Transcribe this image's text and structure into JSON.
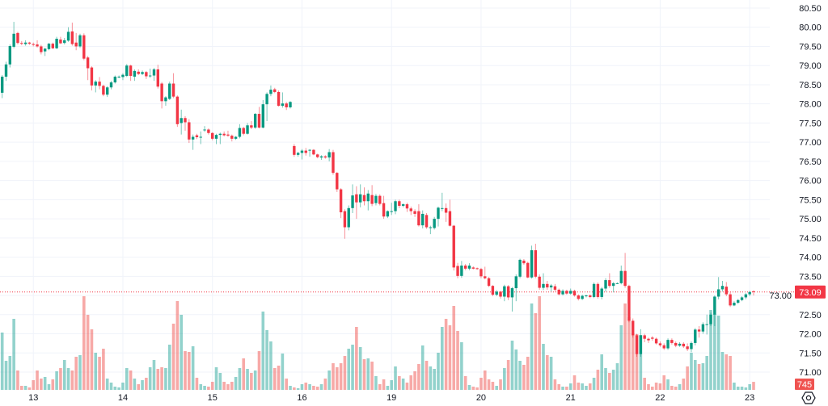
{
  "colors": {
    "up": "#089981",
    "down": "#f23645",
    "up_volume": "#26a69a",
    "down_volume": "#ef5350",
    "grid": "#f0f3fa",
    "text": "#131722"
  },
  "icons": {
    "settings": "settings-icon"
  },
  "last_price_label": "73.09",
  "last_volume_label": "745",
  "chart_data": {
    "type": "candlestick",
    "title": "",
    "price_axis": {
      "min": 71.0,
      "max": 80.5,
      "ticks": [
        "80.50",
        "80.00",
        "79.50",
        "79.00",
        "78.50",
        "78.00",
        "77.50",
        "77.00",
        "76.50",
        "76.00",
        "75.50",
        "75.00",
        "74.50",
        "74.00",
        "73.50",
        "73.00",
        "72.50",
        "72.00",
        "71.50",
        "71.00"
      ]
    },
    "time_axis": {
      "ticks": [
        {
          "label": "13",
          "index": 8
        },
        {
          "label": "14",
          "index": 31
        },
        {
          "label": "15",
          "index": 54
        },
        {
          "label": "16",
          "index": 77
        },
        {
          "label": "19",
          "index": 100
        },
        {
          "label": "20",
          "index": 123
        },
        {
          "label": "21",
          "index": 146
        },
        {
          "label": "22",
          "index": 169
        },
        {
          "label": "23",
          "index": 192
        }
      ]
    },
    "last_price": 73.09,
    "last_volume": 745,
    "fields": [
      "open",
      "high",
      "low",
      "close",
      "volume"
    ],
    "candles": [
      [
        78.29,
        78.75,
        78.15,
        78.71,
        5325
      ],
      [
        78.71,
        79.1,
        78.6,
        79.03,
        2700
      ],
      [
        79.03,
        79.55,
        78.95,
        79.51,
        3150
      ],
      [
        79.49,
        80.14,
        79.45,
        79.83,
        6600
      ],
      [
        79.85,
        79.88,
        79.55,
        79.59,
        1800
      ],
      [
        79.59,
        79.64,
        79.53,
        79.58,
        375
      ],
      [
        79.56,
        79.66,
        79.52,
        79.6,
        375
      ],
      [
        79.6,
        79.62,
        79.54,
        79.57,
        225
      ],
      [
        79.56,
        79.6,
        79.5,
        79.55,
        900
      ],
      [
        79.55,
        79.66,
        79.47,
        79.5,
        1800
      ],
      [
        79.5,
        79.54,
        79.29,
        79.35,
        1050
      ],
      [
        79.37,
        79.46,
        79.25,
        79.44,
        1200
      ],
      [
        79.43,
        79.59,
        79.4,
        79.57,
        525
      ],
      [
        79.57,
        79.6,
        79.43,
        79.45,
        975
      ],
      [
        79.45,
        79.75,
        79.43,
        79.7,
        1725
      ],
      [
        79.68,
        79.75,
        79.56,
        79.58,
        2025
      ],
      [
        79.59,
        79.72,
        79.55,
        79.66,
        2775
      ],
      [
        79.65,
        80.0,
        79.62,
        79.88,
        2025
      ],
      [
        79.89,
        80.12,
        79.52,
        79.56,
        1800
      ],
      [
        79.6,
        79.85,
        79.4,
        79.5,
        3075
      ],
      [
        79.5,
        79.83,
        79.46,
        79.79,
        3225
      ],
      [
        79.79,
        79.84,
        79.14,
        79.18,
        8700
      ],
      [
        79.21,
        79.25,
        78.62,
        78.93,
        6975
      ],
      [
        78.95,
        78.98,
        78.35,
        78.48,
        5625
      ],
      [
        78.48,
        78.62,
        78.3,
        78.58,
        3450
      ],
      [
        78.58,
        78.7,
        78.38,
        78.47,
        3075
      ],
      [
        78.47,
        78.5,
        78.2,
        78.24,
        3825
      ],
      [
        78.24,
        78.46,
        78.18,
        78.43,
        1050
      ],
      [
        78.43,
        78.6,
        78.38,
        78.56,
        675
      ],
      [
        78.56,
        78.74,
        78.53,
        78.71,
        300
      ],
      [
        78.71,
        78.74,
        78.67,
        78.71,
        225
      ],
      [
        78.7,
        78.8,
        78.62,
        78.76,
        675
      ],
      [
        78.73,
        79.04,
        78.7,
        79.0,
        2025
      ],
      [
        79.0,
        79.02,
        78.6,
        78.73,
        1800
      ],
      [
        78.71,
        78.9,
        78.6,
        78.86,
        1050
      ],
      [
        78.84,
        78.9,
        78.75,
        78.78,
        525
      ],
      [
        78.78,
        78.87,
        78.75,
        78.83,
        900
      ],
      [
        78.83,
        78.86,
        78.65,
        78.72,
        1125
      ],
      [
        78.74,
        78.92,
        78.68,
        78.74,
        2100
      ],
      [
        78.74,
        78.94,
        78.6,
        78.9,
        2775
      ],
      [
        78.9,
        79.02,
        78.4,
        78.45,
        1950
      ],
      [
        78.53,
        78.57,
        77.88,
        78.07,
        2100
      ],
      [
        78.07,
        78.2,
        77.95,
        78.17,
        2025
      ],
      [
        78.13,
        78.58,
        78.1,
        78.53,
        4200
      ],
      [
        78.53,
        78.8,
        78.15,
        78.19,
        6150
      ],
      [
        78.19,
        78.22,
        77.4,
        77.47,
        8250
      ],
      [
        77.5,
        77.85,
        77.2,
        77.63,
        6975
      ],
      [
        77.63,
        77.68,
        77.3,
        77.52,
        3600
      ],
      [
        77.52,
        77.6,
        76.98,
        77.07,
        3525
      ],
      [
        77.07,
        77.2,
        76.8,
        77.14,
        4050
      ],
      [
        77.18,
        77.22,
        77.08,
        77.13,
        1125
      ],
      [
        77.12,
        77.28,
        76.95,
        77.14,
        525
      ],
      [
        77.32,
        77.42,
        77.27,
        77.33,
        375
      ],
      [
        77.33,
        77.36,
        77.2,
        77.24,
        300
      ],
      [
        77.24,
        77.26,
        77.05,
        77.09,
        750
      ],
      [
        77.09,
        77.22,
        76.95,
        77.19,
        2100
      ],
      [
        77.19,
        77.25,
        76.95,
        77.22,
        1575
      ],
      [
        77.22,
        77.28,
        77.15,
        77.18,
        750
      ],
      [
        77.2,
        77.3,
        77.14,
        77.17,
        525
      ],
      [
        77.17,
        77.2,
        77.02,
        77.09,
        750
      ],
      [
        77.09,
        77.16,
        77.06,
        77.14,
        1200
      ],
      [
        77.14,
        77.47,
        77.1,
        77.37,
        2025
      ],
      [
        77.37,
        77.4,
        77.18,
        77.22,
        2925
      ],
      [
        77.22,
        77.5,
        77.2,
        77.44,
        1950
      ],
      [
        77.44,
        77.55,
        77.34,
        77.38,
        1575
      ],
      [
        77.38,
        77.76,
        77.35,
        77.74,
        1800
      ],
      [
        77.74,
        77.92,
        77.36,
        77.38,
        3600
      ],
      [
        77.38,
        78.1,
        77.36,
        77.99,
        7275
      ],
      [
        77.99,
        78.3,
        77.55,
        78.26,
        5550
      ],
      [
        78.26,
        78.48,
        78.2,
        78.37,
        4500
      ],
      [
        78.38,
        78.42,
        78.28,
        78.31,
        2025
      ],
      [
        78.31,
        78.35,
        77.93,
        77.95,
        2250
      ],
      [
        77.95,
        78.3,
        77.9,
        78.01,
        3375
      ],
      [
        78.01,
        78.05,
        77.84,
        77.91,
        1050
      ],
      [
        77.91,
        78.07,
        77.88,
        78.05,
        375
      ],
      [
        76.9,
        76.95,
        76.62,
        76.67,
        225
      ],
      [
        76.67,
        76.75,
        76.62,
        76.72,
        150
      ],
      [
        76.72,
        76.82,
        76.55,
        76.78,
        525
      ],
      [
        76.78,
        76.85,
        76.65,
        76.72,
        675
      ],
      [
        76.78,
        76.82,
        76.62,
        76.8,
        525
      ],
      [
        76.8,
        76.82,
        76.66,
        76.68,
        375
      ],
      [
        76.68,
        76.7,
        76.58,
        76.61,
        300
      ],
      [
        76.6,
        76.66,
        76.54,
        76.63,
        525
      ],
      [
        76.63,
        76.66,
        76.57,
        76.6,
        1050
      ],
      [
        76.6,
        76.82,
        76.5,
        76.74,
        1800
      ],
      [
        76.74,
        76.8,
        76.15,
        76.2,
        2475
      ],
      [
        76.2,
        76.22,
        75.7,
        75.77,
        2100
      ],
      [
        75.77,
        75.8,
        75.02,
        75.17,
        2475
      ],
      [
        75.2,
        75.25,
        74.48,
        74.78,
        3150
      ],
      [
        74.78,
        75.35,
        74.7,
        75.28,
        3825
      ],
      [
        75.28,
        75.9,
        75.15,
        75.61,
        4200
      ],
      [
        75.64,
        75.85,
        75.0,
        75.43,
        5850
      ],
      [
        75.43,
        75.9,
        75.3,
        75.64,
        3975
      ],
      [
        75.62,
        75.82,
        75.35,
        75.46,
        2850
      ],
      [
        75.46,
        75.75,
        75.22,
        75.66,
        2925
      ],
      [
        75.62,
        75.88,
        75.33,
        75.39,
        2625
      ],
      [
        75.41,
        75.65,
        75.35,
        75.6,
        1275
      ],
      [
        75.6,
        75.64,
        75.35,
        75.39,
        525
      ],
      [
        75.41,
        75.6,
        75.0,
        75.06,
        975
      ],
      [
        75.06,
        75.22,
        75.02,
        75.2,
        375
      ],
      [
        75.2,
        75.42,
        75.1,
        75.2,
        900
      ],
      [
        75.2,
        75.5,
        75.12,
        75.46,
        2175
      ],
      [
        75.46,
        75.5,
        75.28,
        75.34,
        1275
      ],
      [
        75.34,
        75.4,
        75.3,
        75.38,
        1050
      ],
      [
        75.38,
        75.42,
        75.18,
        75.27,
        675
      ],
      [
        75.27,
        75.32,
        75.1,
        75.2,
        1350
      ],
      [
        75.2,
        75.25,
        75.05,
        75.13,
        1725
      ],
      [
        75.2,
        75.38,
        74.8,
        74.83,
        2400
      ],
      [
        74.83,
        75.22,
        74.75,
        75.13,
        4125
      ],
      [
        75.1,
        75.15,
        74.74,
        74.78,
        2700
      ],
      [
        74.78,
        74.82,
        74.6,
        74.78,
        2175
      ],
      [
        74.76,
        75.05,
        74.72,
        75.0,
        1950
      ],
      [
        75.0,
        75.32,
        74.8,
        75.29,
        3450
      ],
      [
        75.28,
        75.68,
        75.2,
        75.28,
        5850
      ],
      [
        75.28,
        75.4,
        74.92,
        75.16,
        6600
      ],
      [
        75.2,
        75.5,
        74.8,
        74.82,
        6000
      ],
      [
        74.82,
        74.84,
        73.65,
        73.73,
        7800
      ],
      [
        73.77,
        73.85,
        73.45,
        73.51,
        5475
      ],
      [
        73.51,
        73.9,
        73.46,
        73.78,
        4425
      ],
      [
        73.78,
        73.82,
        73.66,
        73.7,
        1275
      ],
      [
        73.7,
        73.84,
        73.66,
        73.78,
        450
      ],
      [
        73.73,
        73.76,
        73.68,
        73.7,
        300
      ],
      [
        73.71,
        73.73,
        73.67,
        73.69,
        225
      ],
      [
        73.69,
        73.72,
        73.45,
        73.5,
        1125
      ],
      [
        73.5,
        73.75,
        73.42,
        73.45,
        1800
      ],
      [
        73.45,
        73.48,
        73.22,
        73.25,
        975
      ],
      [
        73.25,
        73.27,
        72.98,
        73.02,
        750
      ],
      [
        73.02,
        73.14,
        72.98,
        73.1,
        375
      ],
      [
        73.1,
        73.12,
        72.92,
        72.97,
        975
      ],
      [
        72.97,
        73.28,
        72.85,
        73.24,
        2025
      ],
      [
        73.24,
        73.27,
        72.88,
        72.95,
        2775
      ],
      [
        72.95,
        73.22,
        72.58,
        73.19,
        4575
      ],
      [
        73.19,
        73.55,
        72.85,
        73.5,
        3750
      ],
      [
        73.49,
        73.96,
        73.45,
        73.93,
        2700
      ],
      [
        73.91,
        73.95,
        73.8,
        73.84,
        2325
      ],
      [
        73.85,
        73.88,
        73.45,
        73.47,
        3075
      ],
      [
        73.47,
        74.3,
        73.44,
        74.18,
        8025
      ],
      [
        74.18,
        74.35,
        73.45,
        73.49,
        7125
      ],
      [
        73.49,
        73.55,
        73.15,
        73.2,
        8700
      ],
      [
        73.2,
        73.58,
        73.14,
        73.3,
        4275
      ],
      [
        73.3,
        73.38,
        73.15,
        73.21,
        3225
      ],
      [
        73.21,
        73.3,
        73.1,
        73.26,
        3075
      ],
      [
        73.24,
        73.3,
        73.1,
        73.15,
        975
      ],
      [
        73.15,
        73.18,
        73.0,
        73.03,
        525
      ],
      [
        73.03,
        73.16,
        73.0,
        73.12,
        300
      ],
      [
        73.12,
        73.15,
        73.02,
        73.05,
        300
      ],
      [
        73.05,
        73.18,
        73.02,
        73.12,
        600
      ],
      [
        73.12,
        73.15,
        72.97,
        73.0,
        1350
      ],
      [
        73.0,
        73.03,
        72.87,
        72.91,
        675
      ],
      [
        72.91,
        73.02,
        72.88,
        72.99,
        600
      ],
      [
        72.99,
        73.02,
        72.95,
        73.0,
        375
      ],
      [
        73.0,
        73.03,
        72.93,
        72.96,
        600
      ],
      [
        72.96,
        73.34,
        72.93,
        73.3,
        1125
      ],
      [
        73.3,
        73.34,
        72.92,
        72.96,
        1875
      ],
      [
        72.96,
        73.22,
        72.9,
        73.18,
        3300
      ],
      [
        73.18,
        73.45,
        73.1,
        73.4,
        2025
      ],
      [
        73.4,
        73.58,
        73.2,
        73.25,
        1575
      ],
      [
        73.25,
        73.35,
        73.08,
        73.32,
        1875
      ],
      [
        73.32,
        73.34,
        73.3,
        73.32,
        2475
      ],
      [
        73.32,
        73.78,
        73.29,
        73.64,
        6000
      ],
      [
        73.64,
        74.11,
        73.2,
        73.25,
        8025
      ],
      [
        73.25,
        73.28,
        72.3,
        72.34,
        6750
      ],
      [
        72.34,
        72.4,
        71.9,
        71.96,
        5250
      ],
      [
        71.96,
        72.0,
        71.4,
        71.47,
        5175
      ],
      [
        71.47,
        72.12,
        71.4,
        71.96,
        5100
      ],
      [
        71.96,
        72.0,
        71.78,
        71.87,
        1125
      ],
      [
        71.87,
        71.9,
        71.76,
        71.83,
        525
      ],
      [
        71.9,
        71.94,
        71.82,
        71.87,
        300
      ],
      [
        71.87,
        71.9,
        71.72,
        71.75,
        675
      ],
      [
        71.75,
        71.8,
        71.66,
        71.7,
        600
      ],
      [
        71.7,
        71.75,
        71.58,
        71.62,
        1350
      ],
      [
        71.62,
        71.88,
        71.58,
        71.84,
        975
      ],
      [
        71.84,
        71.88,
        71.72,
        71.76,
        375
      ],
      [
        71.76,
        71.8,
        71.65,
        71.69,
        300
      ],
      [
        71.69,
        71.78,
        71.66,
        71.74,
        525
      ],
      [
        71.74,
        71.78,
        71.63,
        71.67,
        1050
      ],
      [
        71.67,
        71.75,
        71.55,
        71.6,
        2175
      ],
      [
        71.6,
        71.8,
        71.52,
        71.76,
        3450
      ],
      [
        71.76,
        72.15,
        71.7,
        72.11,
        2775
      ],
      [
        72.11,
        72.2,
        71.9,
        72.06,
        2400
      ],
      [
        72.06,
        72.3,
        72.0,
        72.25,
        2475
      ],
      [
        72.25,
        72.5,
        71.98,
        72.25,
        3150
      ],
      [
        72.25,
        72.55,
        72.2,
        72.5,
        7425
      ],
      [
        72.5,
        73.0,
        72.2,
        72.97,
        7050
      ],
      [
        72.97,
        73.48,
        72.9,
        73.16,
        6900
      ],
      [
        73.16,
        73.38,
        73.1,
        73.25,
        3525
      ],
      [
        73.23,
        73.35,
        72.98,
        73.03,
        3300
      ],
      [
        73.03,
        73.08,
        72.7,
        72.74,
        3150
      ],
      [
        72.74,
        72.85,
        72.72,
        72.81,
        675
      ],
      [
        72.81,
        72.91,
        72.78,
        72.88,
        300
      ],
      [
        72.88,
        72.98,
        72.85,
        72.95,
        300
      ],
      [
        72.95,
        73.06,
        72.9,
        73.03,
        225
      ],
      [
        73.03,
        73.12,
        72.98,
        73.09,
        525
      ],
      [
        73.11,
        73.13,
        73.0,
        73.09,
        745
      ]
    ]
  }
}
